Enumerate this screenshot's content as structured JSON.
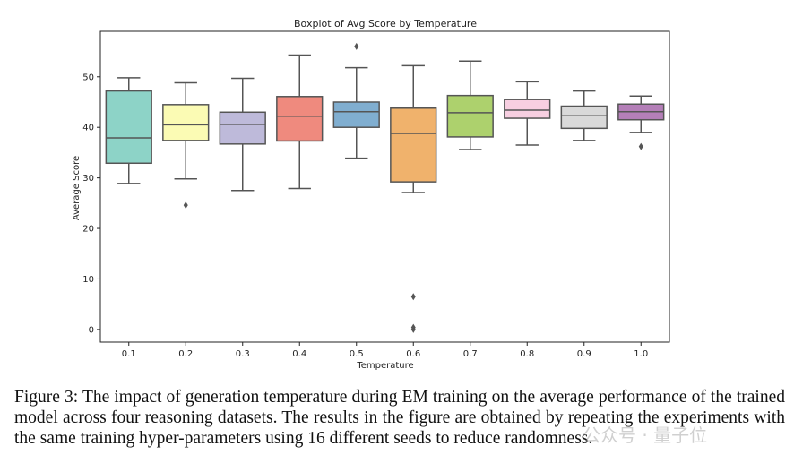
{
  "chart_data": {
    "type": "box",
    "title": "Boxplot of Avg Score by Temperature",
    "xlabel": "Temperature",
    "ylabel": "Average Score",
    "ylim": [
      -2.5,
      59
    ],
    "yticks": [
      0,
      10,
      20,
      30,
      40,
      50
    ],
    "grid": false,
    "categories": [
      "0.1",
      "0.2",
      "0.3",
      "0.4",
      "0.5",
      "0.6",
      "0.7",
      "0.8",
      "0.9",
      "1.0"
    ],
    "boxes": [
      {
        "whisker_low": 28.9,
        "q1": 32.9,
        "median": 37.9,
        "q3": 47.2,
        "whisker_high": 49.8,
        "outliers": [],
        "color": "#8dd3c7"
      },
      {
        "whisker_low": 29.8,
        "q1": 37.4,
        "median": 40.5,
        "q3": 44.5,
        "whisker_high": 48.8,
        "outliers": [
          24.6
        ],
        "color": "#fbfbb4"
      },
      {
        "whisker_low": 27.5,
        "q1": 36.7,
        "median": 40.6,
        "q3": 43.0,
        "whisker_high": 49.7,
        "outliers": [],
        "color": "#bebada"
      },
      {
        "whisker_low": 27.9,
        "q1": 37.3,
        "median": 42.2,
        "q3": 46.1,
        "whisker_high": 54.3,
        "outliers": [],
        "color": "#ef8a7e"
      },
      {
        "whisker_low": 33.9,
        "q1": 40.0,
        "median": 43.1,
        "q3": 45.0,
        "whisker_high": 51.8,
        "outliers": [
          56.0
        ],
        "color": "#80aed0"
      },
      {
        "whisker_low": 27.1,
        "q1": 29.2,
        "median": 38.8,
        "q3": 43.8,
        "whisker_high": 52.2,
        "outliers": [
          6.5,
          0.4,
          0.0
        ],
        "color": "#f0b26c"
      },
      {
        "whisker_low": 35.6,
        "q1": 38.1,
        "median": 42.9,
        "q3": 46.3,
        "whisker_high": 53.1,
        "outliers": [],
        "color": "#add16d"
      },
      {
        "whisker_low": 36.5,
        "q1": 41.8,
        "median": 43.4,
        "q3": 45.5,
        "whisker_high": 49.0,
        "outliers": [],
        "color": "#f7cfe1"
      },
      {
        "whisker_low": 37.4,
        "q1": 39.8,
        "median": 42.3,
        "q3": 44.2,
        "whisker_high": 47.2,
        "outliers": [],
        "color": "#d9d9d9"
      },
      {
        "whisker_low": 39.0,
        "q1": 41.5,
        "median": 43.1,
        "q3": 44.6,
        "whisker_high": 46.2,
        "outliers": [
          36.2
        ],
        "color": "#b47fb8"
      }
    ]
  },
  "caption": "Figure 3: The impact of generation temperature during EM training on the average performance of the trained model across four reasoning datasets. The results in the figure are obtained by repeating the experiments with the same training hyper-parameters using 16 different seeds to reduce randomness.",
  "watermark": "公众号 · 量子位"
}
